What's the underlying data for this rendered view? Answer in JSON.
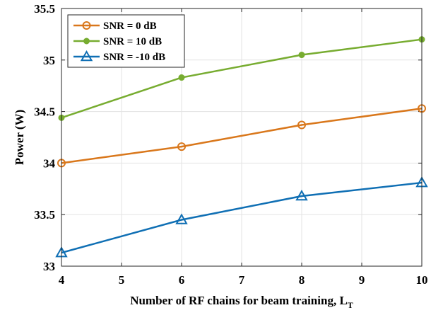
{
  "chart_data": {
    "type": "line",
    "xlabel": "Number of RF chains for beam training, L",
    "xlabel_subscript": "T",
    "ylabel": "Power (W)",
    "x": [
      4,
      6,
      8,
      10
    ],
    "xlim": [
      4,
      10
    ],
    "ylim": [
      33,
      35.5
    ],
    "xticks": [
      "4",
      "5",
      "6",
      "7",
      "8",
      "9",
      "10"
    ],
    "yticks": [
      "33",
      "33.5",
      "34",
      "34.5",
      "35",
      "35.5"
    ],
    "grid": true,
    "legend_position": "top-left",
    "series": [
      {
        "name": "SNR = 0 dB",
        "values": [
          34.0,
          34.16,
          34.37,
          34.53
        ],
        "color": "#d9771b",
        "marker": "circle"
      },
      {
        "name": "SNR = 10 dB",
        "values": [
          34.44,
          34.83,
          35.05,
          35.2
        ],
        "color": "#77ac30",
        "marker": "dot"
      },
      {
        "name": "SNR = -10 dB",
        "values": [
          33.13,
          33.45,
          33.68,
          33.81
        ],
        "color": "#0f6fb4",
        "marker": "triangle"
      }
    ]
  }
}
